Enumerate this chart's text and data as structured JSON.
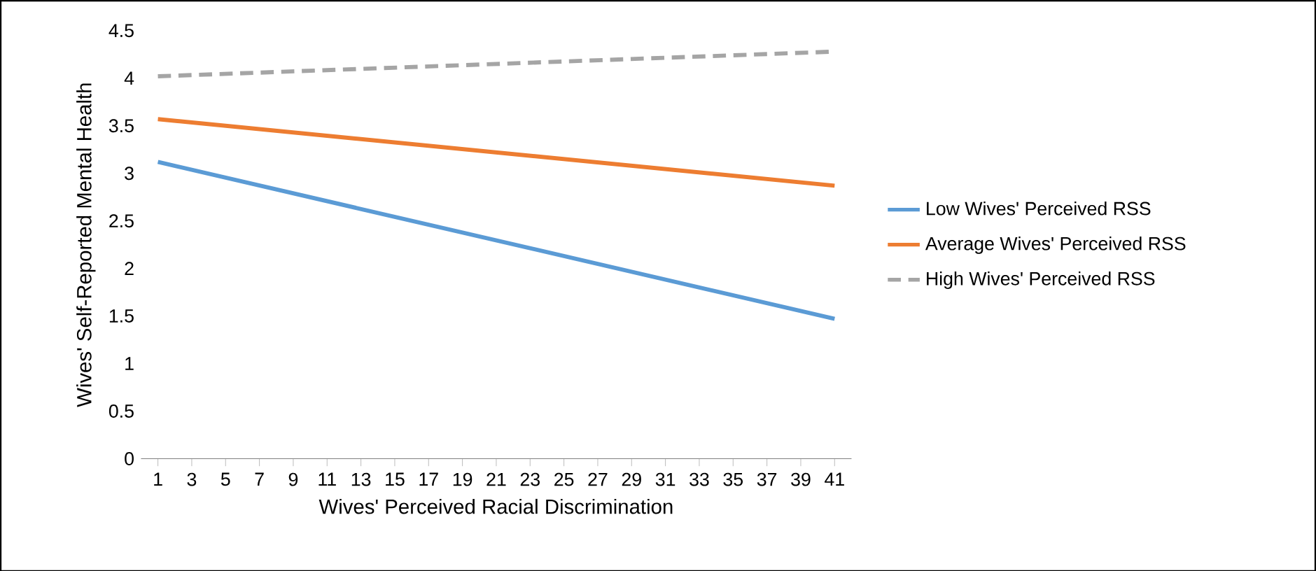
{
  "chart_data": {
    "type": "line",
    "xlabel": "Wives' Perceived Racial Discrimination",
    "ylabel": "Wives' Self-Reported Mental Health",
    "xlim": [
      0,
      42
    ],
    "xticks": [
      1,
      3,
      5,
      7,
      9,
      11,
      13,
      15,
      17,
      19,
      21,
      23,
      25,
      27,
      29,
      31,
      33,
      35,
      37,
      39,
      41
    ],
    "ylim": [
      0,
      4.5
    ],
    "yticks": [
      0,
      0.5,
      1,
      1.5,
      2,
      2.5,
      3,
      3.5,
      4,
      4.5
    ],
    "legend": "right",
    "grid": false,
    "x": [
      1,
      41
    ],
    "series": [
      {
        "name": "Low Wives' Perceived RSS",
        "color": "#5b9bd5",
        "values": [
          3.12,
          1.47
        ],
        "line_style": "solid"
      },
      {
        "name": "Average Wives' Perceived RSS",
        "color": "#ed7d31",
        "values": [
          3.57,
          2.87
        ],
        "line_style": "solid"
      },
      {
        "name": "High Wives' Perceived RSS",
        "color": "#a5a5a5",
        "values": [
          4.02,
          4.28
        ],
        "line_style": "dashed"
      }
    ]
  }
}
